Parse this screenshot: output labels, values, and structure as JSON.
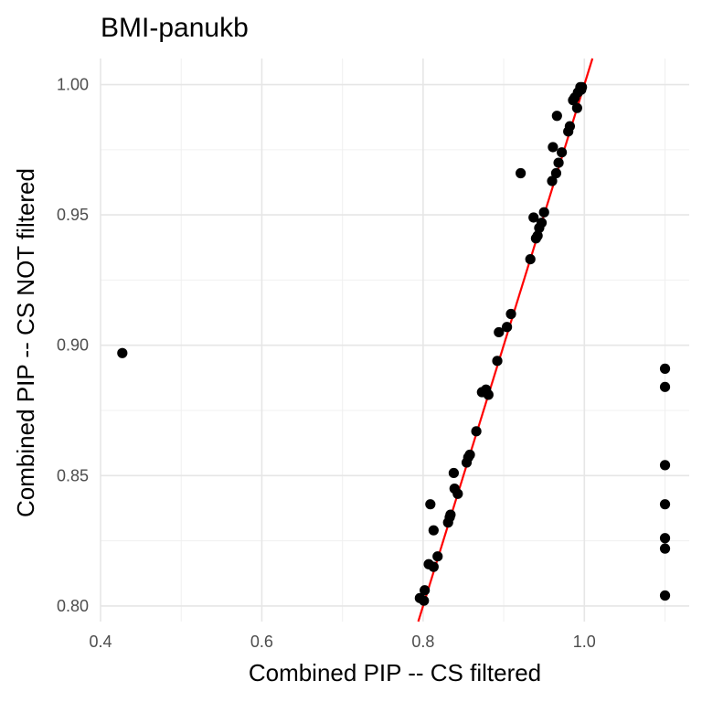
{
  "chart_data": {
    "type": "scatter",
    "title": "BMI-panukb",
    "xlabel": "Combined PIP -- CS filtered",
    "ylabel": "Combined PIP -- CS NOT filtered",
    "xlim": [
      0.4,
      1.13
    ],
    "ylim": [
      0.794,
      1.01
    ],
    "xticks": [
      0.4,
      0.6,
      0.8,
      1.0
    ],
    "xtick_labels": [
      "0.4",
      "0.6",
      "0.8",
      "1.0"
    ],
    "xminor": [
      0.5,
      0.7,
      0.9,
      1.1
    ],
    "yticks": [
      0.8,
      0.85,
      0.9,
      0.95,
      1.0
    ],
    "ytick_labels": [
      "0.80",
      "0.85",
      "0.90",
      "0.95",
      "1.00"
    ],
    "yminor": [
      0.825,
      0.875,
      0.925,
      0.975
    ],
    "grid": true,
    "point_color": "#000000",
    "reference_line": {
      "type": "y=x",
      "color": "#ff0000"
    },
    "points": [
      [
        0.427,
        0.897
      ],
      [
        0.796,
        0.803
      ],
      [
        0.801,
        0.802
      ],
      [
        0.802,
        0.806
      ],
      [
        0.807,
        0.816
      ],
      [
        0.809,
        0.839
      ],
      [
        0.813,
        0.815
      ],
      [
        0.813,
        0.829
      ],
      [
        0.818,
        0.819
      ],
      [
        0.831,
        0.832
      ],
      [
        0.833,
        0.834
      ],
      [
        0.834,
        0.835
      ],
      [
        0.838,
        0.851
      ],
      [
        0.839,
        0.845
      ],
      [
        0.843,
        0.843
      ],
      [
        0.854,
        0.855
      ],
      [
        0.856,
        0.857
      ],
      [
        0.858,
        0.858
      ],
      [
        0.866,
        0.867
      ],
      [
        0.873,
        0.882
      ],
      [
        0.878,
        0.883
      ],
      [
        0.881,
        0.881
      ],
      [
        0.892,
        0.894
      ],
      [
        0.894,
        0.905
      ],
      [
        0.904,
        0.907
      ],
      [
        0.909,
        0.912
      ],
      [
        0.921,
        0.966
      ],
      [
        0.933,
        0.933
      ],
      [
        0.937,
        0.949
      ],
      [
        0.94,
        0.941
      ],
      [
        0.942,
        0.942
      ],
      [
        0.944,
        0.945
      ],
      [
        0.947,
        0.947
      ],
      [
        0.95,
        0.951
      ],
      [
        0.96,
        0.963
      ],
      [
        0.961,
        0.976
      ],
      [
        0.965,
        0.966
      ],
      [
        0.966,
        0.988
      ],
      [
        0.968,
        0.97
      ],
      [
        0.972,
        0.974
      ],
      [
        0.98,
        0.982
      ],
      [
        0.982,
        0.984
      ],
      [
        0.986,
        0.994
      ],
      [
        0.988,
        0.995
      ],
      [
        0.991,
        0.991
      ],
      [
        0.992,
        0.997
      ],
      [
        0.995,
        0.999
      ],
      [
        0.996,
        0.998
      ],
      [
        0.997,
        0.999
      ],
      [
        1.1,
        0.891
      ],
      [
        1.1,
        0.884
      ],
      [
        1.1,
        0.854
      ],
      [
        1.1,
        0.839
      ],
      [
        1.1,
        0.826
      ],
      [
        1.1,
        0.822
      ],
      [
        1.1,
        0.804
      ]
    ]
  }
}
